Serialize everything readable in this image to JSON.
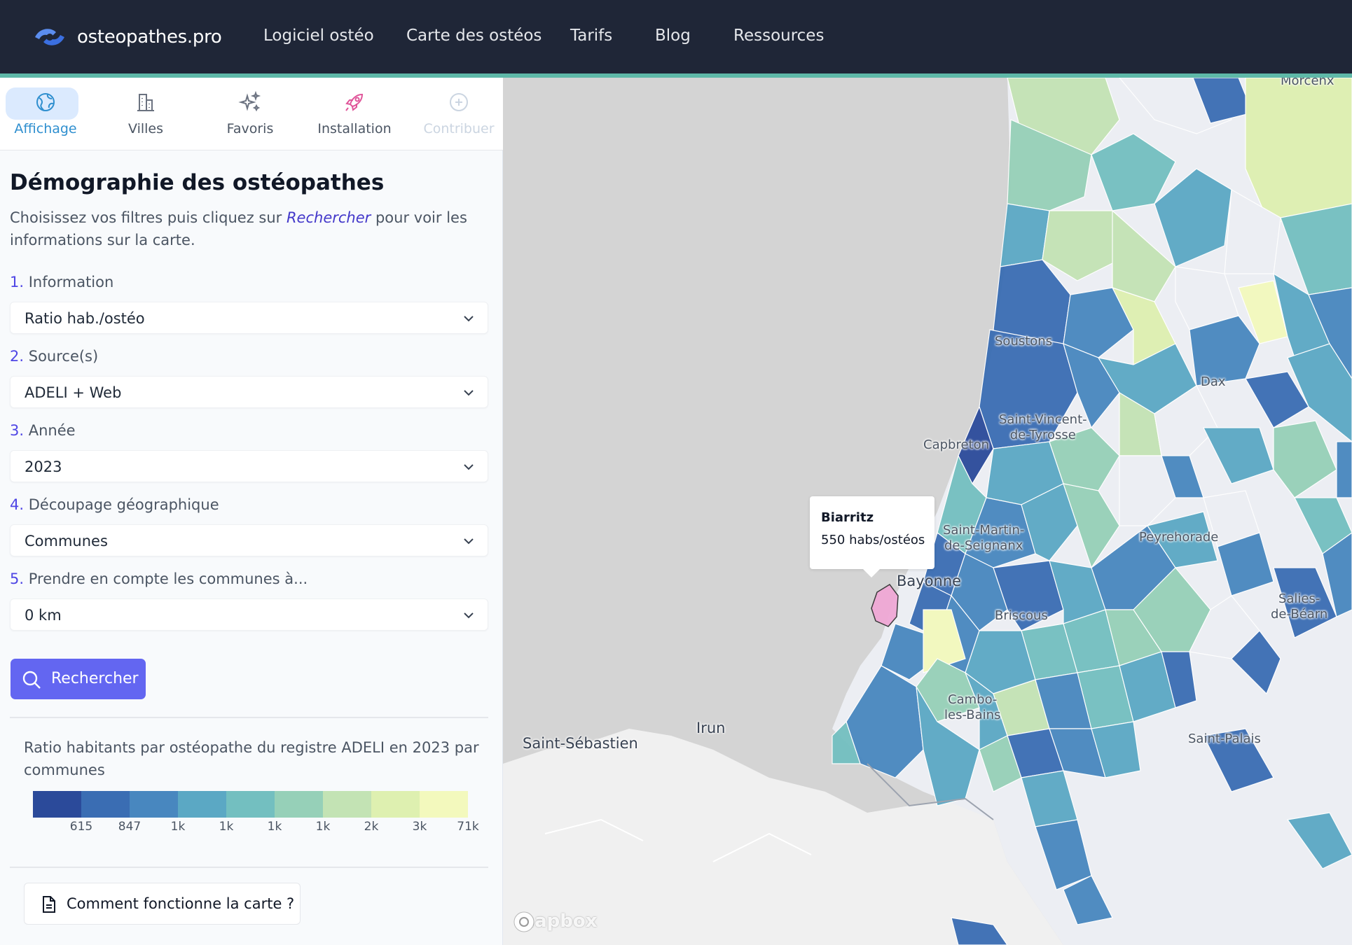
{
  "navbar": {
    "brand": "osteopathes.pro",
    "links": [
      "Logiciel ostéo",
      "Carte des ostéos",
      "Tarifs",
      "Blog",
      "Ressources"
    ]
  },
  "tabs": [
    {
      "label": "Affichage",
      "icon": "globe-icon",
      "active": true
    },
    {
      "label": "Villes",
      "icon": "buildings-icon"
    },
    {
      "label": "Favoris",
      "icon": "sparkles-icon"
    },
    {
      "label": "Installation",
      "icon": "rocket-icon"
    },
    {
      "label": "Contribuer",
      "icon": "plus-circle-icon",
      "disabled": true
    }
  ],
  "panel": {
    "title": "Démographie des ostéopathes",
    "desc_before": "Choisissez vos filtres puis cliquez sur ",
    "desc_link": "Rechercher",
    "desc_after": " pour voir les informations sur la carte."
  },
  "filters": [
    {
      "num": "1.",
      "label": "Information",
      "value": "Ratio hab./ostéo"
    },
    {
      "num": "2.",
      "label": "Source(s)",
      "value": "ADELI + Web"
    },
    {
      "num": "3.",
      "label": "Année",
      "value": "2023"
    },
    {
      "num": "4.",
      "label": "Découpage géographique",
      "value": "Communes"
    },
    {
      "num": "5.",
      "label": "Prendre en compte les communes à...",
      "value": "0 km"
    }
  ],
  "search_button": "Rechercher",
  "legend": {
    "title": "Ratio habitants par ostéopathe du registre ADELI en 2023 par communes",
    "colors": [
      "#2b4a9a",
      "#3a6db3",
      "#4887bf",
      "#5ba8c4",
      "#73bfc0",
      "#96d0b8",
      "#c3e3b4",
      "#def0b0",
      "#f3f9bd"
    ],
    "ticks": [
      "615",
      "847",
      "1k",
      "1k",
      "1k",
      "1k",
      "2k",
      "3k",
      "71k"
    ]
  },
  "help_button": "Comment fonctionne la carte ?",
  "map": {
    "places": {
      "morcenx": "Morcenx",
      "soustons": "Soustons",
      "dax": "Dax",
      "saint_vincent": "Saint-Vincent-\nde-Tyrosse",
      "capbreton": "Capbreton",
      "saint_martin": "Saint-Martin-\nde-Seignanx",
      "peyrehorade": "Peyrehorade",
      "bayonne": "Bayonne",
      "briscous": "Briscous",
      "salies": "Salies-\nde-Béarn",
      "cambo": "Cambo-\nles-Bains",
      "irun": "Irun",
      "saint_sebastien": "Saint-Sébastien",
      "saint_palais": "Saint-Palais"
    },
    "tooltip": {
      "title": "Biarritz",
      "value": "550 habs/ostéos"
    },
    "highlight_color": "#f0a8d6",
    "attribution": "mapbox"
  }
}
